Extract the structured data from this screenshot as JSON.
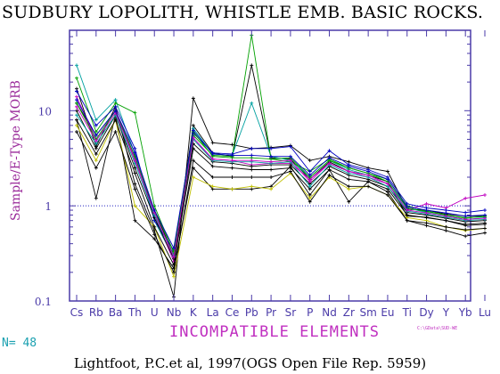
{
  "header": {
    "title": "SUDBURY LOPOLITH, WHISTLE EMB. BASIC ROCKS."
  },
  "footer": {
    "n_label": "N= 48",
    "source": "Lightfoot, P.C.et al, 1997(OGS Open File Rep. 5959)",
    "path_note": "C:\\GData\\SUD-WE"
  },
  "colors": {
    "axis": "#4a3aa8",
    "tick_text": "#4a3aa8",
    "xlabel": "#c030c0",
    "ylabel": "#9a2a9a",
    "reference_line": "#2020c0",
    "n_label": "#1aa0b0"
  },
  "chart_data": {
    "type": "line",
    "title": "SUDBURY LOPOLITH, WHISTLE EMB. BASIC ROCKS.",
    "xlabel": "INCOMPATIBLE ELEMENTS",
    "ylabel": "Sample/E-Type MORB",
    "y_scale": "log",
    "ylim": [
      0.1,
      70
    ],
    "y_ticks": [
      0.1,
      1,
      10
    ],
    "y_tick_labels": [
      "0.1",
      "1",
      "10"
    ],
    "categories": [
      "Cs",
      "Rb",
      "Ba",
      "Th",
      "U",
      "Nb",
      "K",
      "La",
      "Ce",
      "Pb",
      "Pr",
      "Sr",
      "P",
      "Nd",
      "Zr",
      "Sm",
      "Eu",
      "Ti",
      "Dy",
      "Y",
      "Yb",
      "Lu"
    ],
    "reference_line": 1,
    "n_samples": 48,
    "series": [
      {
        "color": "#000000",
        "values": [
          17,
          4.2,
          11,
          1.7,
          0.55,
          0.11,
          13.5,
          4.6,
          4.4,
          4.0,
          4.1,
          4.3,
          3.0,
          3.3,
          2.9,
          2.5,
          2.3,
          0.92,
          0.9,
          0.82,
          0.78,
          0.78
        ]
      },
      {
        "color": "#000000",
        "values": [
          12,
          5.5,
          10,
          3.0,
          0.9,
          0.3,
          7.0,
          3.6,
          3.3,
          30,
          3.2,
          3.1,
          1.9,
          2.9,
          2.3,
          2.1,
          1.8,
          0.78,
          0.76,
          0.7,
          0.62,
          0.64
        ]
      },
      {
        "color": "#000000",
        "values": [
          8,
          1.2,
          9,
          0.7,
          0.45,
          0.22,
          2.5,
          1.5,
          1.5,
          1.5,
          1.6,
          2.6,
          1.3,
          2.4,
          1.1,
          1.8,
          1.4,
          0.7,
          0.62,
          0.55,
          0.48,
          0.52
        ]
      },
      {
        "color": "#00a0a0",
        "values": [
          30,
          8,
          13,
          3.5,
          0.7,
          0.28,
          6.5,
          3.5,
          3.4,
          12,
          3.3,
          3.0,
          2.0,
          3.0,
          2.4,
          2.1,
          1.7,
          0.95,
          0.85,
          0.78,
          0.72,
          0.75
        ]
      },
      {
        "color": "#00a000",
        "values": [
          22,
          6,
          12,
          9.5,
          1.0,
          0.32,
          5.5,
          3.4,
          3.3,
          62,
          3.1,
          2.9,
          2.3,
          3.1,
          2.5,
          2.2,
          1.9,
          1.0,
          0.88,
          0.8,
          0.74,
          0.78
        ]
      },
      {
        "color": "#c000c0",
        "values": [
          14,
          5,
          10,
          3.2,
          0.8,
          0.26,
          5.0,
          3.1,
          3.0,
          2.7,
          2.8,
          2.8,
          1.9,
          2.8,
          2.3,
          2.0,
          1.7,
          0.9,
          1.05,
          0.95,
          1.2,
          1.3
        ]
      },
      {
        "color": "#c0c000",
        "values": [
          7,
          3,
          8,
          1.0,
          0.6,
          0.18,
          2.0,
          1.6,
          1.5,
          1.6,
          1.5,
          2.2,
          1.2,
          2.0,
          1.5,
          1.6,
          1.3,
          0.75,
          0.7,
          0.6,
          0.55,
          0.58
        ]
      },
      {
        "color": "#0000c0",
        "values": [
          16,
          7,
          11,
          4.0,
          0.7,
          0.34,
          5.8,
          3.6,
          3.5,
          4.0,
          4.0,
          4.2,
          2.3,
          3.8,
          2.7,
          2.4,
          2.0,
          1.05,
          0.95,
          0.9,
          0.85,
          0.9
        ]
      },
      {
        "color": "#000000",
        "values": [
          10,
          4,
          9,
          2.5,
          0.75,
          0.28,
          4.5,
          2.9,
          2.8,
          2.6,
          2.7,
          2.7,
          1.7,
          2.6,
          2.1,
          1.9,
          1.6,
          0.85,
          0.8,
          0.74,
          0.68,
          0.7
        ]
      },
      {
        "color": "#000000",
        "values": [
          8,
          3.5,
          8,
          2.2,
          0.6,
          0.24,
          4.0,
          2.6,
          2.5,
          2.4,
          2.4,
          2.5,
          1.5,
          2.4,
          1.9,
          1.8,
          1.5,
          0.8,
          0.75,
          0.7,
          0.64,
          0.66
        ]
      },
      {
        "color": "#00a0a0",
        "values": [
          9,
          4.5,
          9,
          2.8,
          0.8,
          0.3,
          5.0,
          3.0,
          2.9,
          2.9,
          2.8,
          2.9,
          1.6,
          2.7,
          2.2,
          2.0,
          1.6,
          0.88,
          0.82,
          0.76,
          0.7,
          0.72
        ]
      },
      {
        "color": "#00a000",
        "values": [
          12,
          5,
          10,
          3.3,
          0.9,
          0.33,
          6.0,
          3.3,
          3.2,
          3.2,
          3.1,
          3.2,
          2.0,
          3.0,
          2.5,
          2.2,
          1.8,
          0.95,
          0.87,
          0.8,
          0.75,
          0.77
        ]
      },
      {
        "color": "#c000c0",
        "values": [
          11,
          4.8,
          9.5,
          3.0,
          0.85,
          0.29,
          5.2,
          3.1,
          3.0,
          3.0,
          2.9,
          3.0,
          1.8,
          2.8,
          2.3,
          2.1,
          1.7,
          0.9,
          0.84,
          0.78,
          0.72,
          0.74
        ]
      },
      {
        "color": "#000000",
        "values": [
          6,
          2.5,
          6,
          1.5,
          0.5,
          0.2,
          3.0,
          2.0,
          2.0,
          2.0,
          2.0,
          2.3,
          1.1,
          2.1,
          1.6,
          1.6,
          1.3,
          0.7,
          0.66,
          0.6,
          0.56,
          0.58
        ]
      },
      {
        "color": "#0000c0",
        "values": [
          13,
          5.5,
          10,
          3.6,
          0.9,
          0.36,
          6.2,
          3.5,
          3.4,
          3.4,
          3.3,
          3.3,
          2.1,
          3.2,
          2.6,
          2.3,
          1.9,
          0.98,
          0.9,
          0.84,
          0.78,
          0.8
        ]
      }
    ]
  }
}
